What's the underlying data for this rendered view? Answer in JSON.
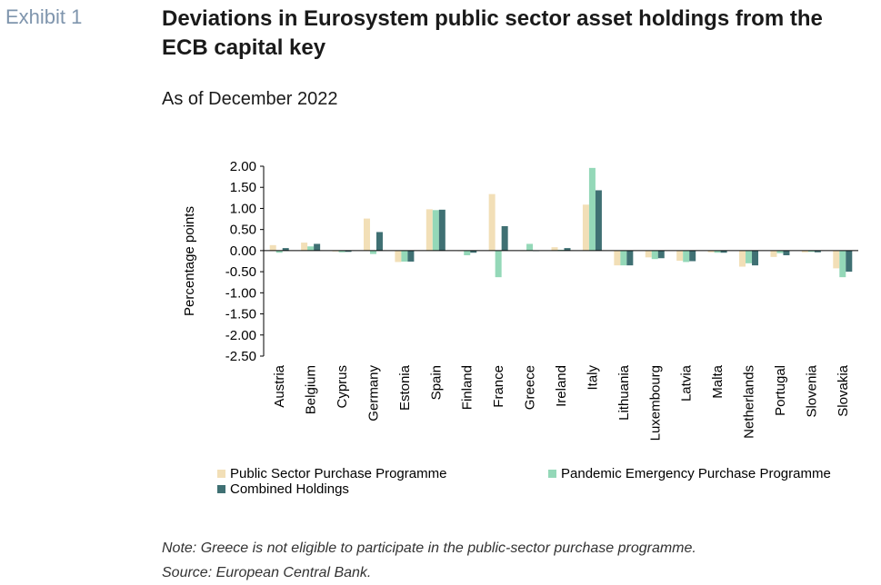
{
  "header": {
    "exhibit": "Exhibit 1",
    "title": "Deviations in Eurosystem public sector asset holdings from the ECB capital key",
    "subtitle": "As of December 2022"
  },
  "footer": {
    "note": "Note: Greece is not eligible to participate in the public-sector purchase programme.",
    "source": "Source: European Central Bank."
  },
  "chart_data": {
    "type": "bar",
    "ylabel": "Percentage points",
    "ylim": [
      -2.5,
      2.0
    ],
    "yticks": [
      "2.00",
      "1.50",
      "1.00",
      "0.50",
      "0.00",
      "-0.50",
      "-1.00",
      "-1.50",
      "-2.00",
      "-2.50"
    ],
    "grid": false,
    "legend_position": "bottom",
    "categories": [
      "Austria",
      "Belgium",
      "Cyprus",
      "Germany",
      "Estonia",
      "Spain",
      "Finland",
      "France",
      "Greece",
      "Ireland",
      "Italy",
      "Lithuania",
      "Luxembourg",
      "Latvia",
      "Malta",
      "Netherlands",
      "Portugal",
      "Slovenia",
      "Slovakia"
    ],
    "series": [
      {
        "name": "Public Sector Purchase Programme",
        "color": "#f2dfb7",
        "values": [
          0.13,
          0.19,
          -0.02,
          0.76,
          -0.27,
          0.98,
          0.0,
          1.34,
          0.0,
          0.08,
          1.09,
          -0.35,
          -0.16,
          -0.24,
          -0.04,
          -0.38,
          -0.15,
          -0.04,
          -0.42
        ]
      },
      {
        "name": "Pandemic Emergency Purchase Programme",
        "color": "#94d8b8",
        "values": [
          -0.05,
          0.1,
          -0.04,
          -0.08,
          -0.26,
          0.96,
          -0.11,
          -0.63,
          0.16,
          0.02,
          1.96,
          -0.35,
          -0.2,
          -0.27,
          -0.05,
          -0.3,
          -0.06,
          -0.03,
          -0.63
        ]
      },
      {
        "name": "Combined Holdings",
        "color": "#3f7073",
        "values": [
          0.06,
          0.16,
          -0.03,
          0.44,
          -0.26,
          0.97,
          -0.05,
          0.58,
          0.0,
          0.06,
          1.43,
          -0.35,
          -0.18,
          -0.25,
          -0.05,
          -0.35,
          -0.11,
          -0.04,
          -0.5
        ]
      }
    ]
  }
}
